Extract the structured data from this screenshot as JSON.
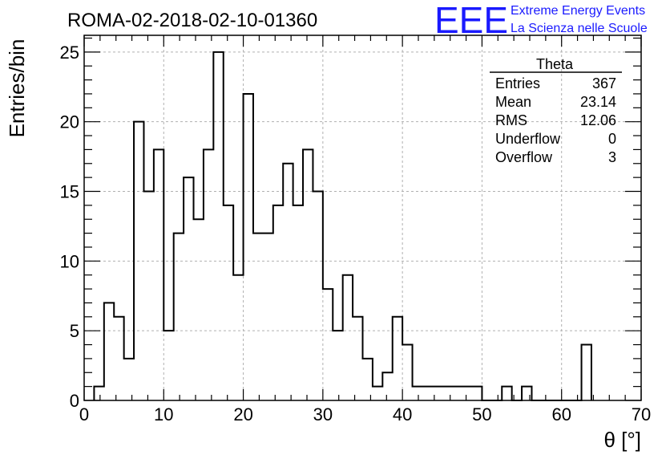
{
  "chart_data": {
    "type": "histogram",
    "title": "ROMA-02-2018-02-10-01360",
    "xlabel": "θ [°]",
    "ylabel": "Entries/bin",
    "xlim": [
      0,
      70
    ],
    "ylim": [
      0,
      26.2
    ],
    "xticks": [
      0,
      10,
      20,
      30,
      40,
      50,
      60,
      70
    ],
    "yticks": [
      0,
      5,
      10,
      15,
      20,
      25
    ],
    "grid": true,
    "bin_width": 1.25,
    "bin_start": 1.25,
    "values": [
      1,
      7,
      6,
      3,
      20,
      15,
      18,
      5,
      12,
      16,
      13,
      18,
      25,
      14,
      9,
      22,
      12,
      12,
      14,
      17,
      14,
      18,
      15,
      8,
      5,
      9,
      6,
      3,
      1,
      2,
      6,
      4,
      1,
      1,
      1,
      1,
      1,
      1,
      1,
      0,
      0,
      1,
      0,
      1,
      0,
      0,
      0,
      0,
      0,
      4
    ],
    "stats": {
      "name": "Theta",
      "rows": [
        {
          "label": "Entries",
          "value": "367"
        },
        {
          "label": "Mean",
          "value": "23.14"
        },
        {
          "label": "RMS",
          "value": "12.06"
        },
        {
          "label": "Underflow",
          "value": "0"
        },
        {
          "label": "Overflow",
          "value": "3"
        }
      ]
    }
  },
  "logo": {
    "mark": "EEE",
    "line1": "Extreme Energy Events",
    "line2": "La Scienza nelle Scuole",
    "color": "#1a1aff"
  }
}
